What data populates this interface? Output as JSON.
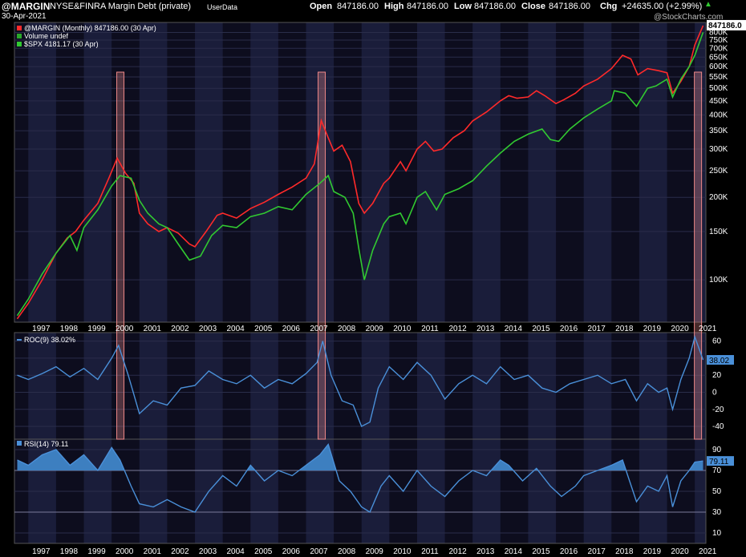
{
  "header": {
    "symbol": "@MARGIN",
    "description": "NYSE&FINRA Margin Debt (private)",
    "source": "UserData",
    "date": "30-Apr-2021",
    "open_label": "Open",
    "open": "847186.00",
    "high_label": "High",
    "high": "847186.00",
    "low_label": "Low",
    "low": "847186.00",
    "close_label": "Close",
    "close": "847186.00",
    "chg_label": "Chg",
    "chg": "+24635.00 (+2.99%)",
    "watermark": "@StockCharts.com"
  },
  "chart_data": [
    {
      "type": "line",
      "panel": "price",
      "scale": "log",
      "legend": [
        {
          "label": "@MARGIN (Monthly) 847186.00 (30 Apr)",
          "color": "#ff2a2a"
        },
        {
          "label": "Volume undef",
          "color": "#2aa82a"
        },
        {
          "label": "$SPX 4181.17 (30 Apr)",
          "color": "#31c931"
        }
      ],
      "last_value_label": "847186.0",
      "y_ticks": [
        "100K",
        "150K",
        "200K",
        "250K",
        "300K",
        "350K",
        "400K",
        "450K",
        "500K",
        "550K",
        "600K",
        "650K",
        "700K",
        "750K",
        "800K"
      ],
      "y_tick_values": [
        100000,
        150000,
        200000,
        250000,
        300000,
        350000,
        400000,
        450000,
        500000,
        550000,
        600000,
        650000,
        700000,
        750000,
        800000
      ],
      "ylim": [
        70000,
        870000
      ],
      "x_ticks": [
        "1997",
        "1998",
        "1999",
        "2000",
        "2001",
        "2002",
        "2003",
        "2004",
        "2005",
        "2006",
        "2007",
        "2008",
        "2009",
        "2010",
        "2011",
        "2012",
        "2013",
        "2014",
        "2015",
        "2016",
        "2017",
        "2018",
        "2019",
        "2020",
        "2021"
      ],
      "xlim": [
        1996.5,
        2021.4
      ],
      "series": [
        {
          "name": "@MARGIN",
          "color": "#ff2a2a",
          "x": [
            1996.6,
            1997.0,
            1997.5,
            1998.0,
            1998.4,
            1998.7,
            1999.0,
            1999.5,
            1999.9,
            2000.2,
            2000.5,
            2000.8,
            2001.0,
            2001.3,
            2001.7,
            2002.0,
            2002.4,
            2002.8,
            2003.0,
            2003.4,
            2003.8,
            2004.0,
            2004.5,
            2005.0,
            2005.5,
            2006.0,
            2006.5,
            2007.0,
            2007.3,
            2007.55,
            2007.8,
            2008.0,
            2008.3,
            2008.6,
            2008.9,
            2009.1,
            2009.4,
            2009.8,
            2010.0,
            2010.4,
            2010.6,
            2011.0,
            2011.3,
            2011.6,
            2011.9,
            2012.3,
            2012.7,
            2013.0,
            2013.5,
            2014.0,
            2014.3,
            2014.6,
            2015.0,
            2015.3,
            2015.6,
            2016.0,
            2016.3,
            2016.7,
            2017.0,
            2017.5,
            2018.0,
            2018.4,
            2018.7,
            2018.95,
            2019.3,
            2019.7,
            2020.0,
            2020.2,
            2020.5,
            2020.8,
            2021.0,
            2021.3
          ],
          "y": [
            72000,
            82000,
            100000,
            125000,
            142000,
            150000,
            165000,
            190000,
            235000,
            278000,
            245000,
            225000,
            175000,
            160000,
            150000,
            155000,
            148000,
            135000,
            132000,
            150000,
            172000,
            175000,
            168000,
            182000,
            192000,
            205000,
            218000,
            235000,
            265000,
            381000,
            330000,
            295000,
            310000,
            270000,
            190000,
            175000,
            190000,
            225000,
            235000,
            270000,
            250000,
            300000,
            320000,
            295000,
            300000,
            330000,
            350000,
            380000,
            410000,
            450000,
            470000,
            460000,
            465000,
            490000,
            470000,
            440000,
            455000,
            480000,
            510000,
            540000,
            590000,
            660000,
            640000,
            560000,
            590000,
            580000,
            570000,
            480000,
            530000,
            600000,
            720000,
            847186
          ]
        },
        {
          "name": "$SPX",
          "color": "#31c931",
          "x": [
            1996.6,
            1997.0,
            1997.5,
            1998.0,
            1998.5,
            1998.75,
            1999.0,
            1999.5,
            2000.0,
            2000.3,
            2000.7,
            2001.0,
            2001.3,
            2001.7,
            2002.0,
            2002.4,
            2002.8,
            2003.2,
            2003.6,
            2004.0,
            2004.5,
            2005.0,
            2005.5,
            2006.0,
            2006.5,
            2007.0,
            2007.5,
            2007.8,
            2008.0,
            2008.4,
            2008.7,
            2008.9,
            2009.1,
            2009.4,
            2009.8,
            2010.0,
            2010.4,
            2010.6,
            2011.0,
            2011.3,
            2011.7,
            2012.0,
            2012.5,
            2013.0,
            2013.5,
            2014.0,
            2014.5,
            2015.0,
            2015.5,
            2015.8,
            2016.1,
            2016.5,
            2017.0,
            2017.5,
            2018.0,
            2018.1,
            2018.5,
            2018.9,
            2019.3,
            2019.6,
            2020.0,
            2020.2,
            2020.5,
            2020.8,
            2021.0,
            2021.3
          ],
          "y": [
            74000,
            85000,
            105000,
            125000,
            145000,
            128000,
            155000,
            180000,
            220000,
            240000,
            235000,
            195000,
            175000,
            160000,
            155000,
            135000,
            118000,
            122000,
            145000,
            158000,
            155000,
            170000,
            175000,
            185000,
            180000,
            205000,
            225000,
            240000,
            210000,
            200000,
            175000,
            130000,
            100000,
            128000,
            160000,
            170000,
            175000,
            160000,
            200000,
            210000,
            180000,
            205000,
            215000,
            230000,
            260000,
            290000,
            320000,
            340000,
            355000,
            325000,
            320000,
            355000,
            390000,
            420000,
            450000,
            490000,
            480000,
            430000,
            500000,
            510000,
            540000,
            465000,
            540000,
            600000,
            660000,
            800000
          ]
        }
      ],
      "highlights": [
        "2000",
        "2007",
        "2021"
      ]
    },
    {
      "type": "line",
      "panel": "indicator",
      "name": "ROC(9) 38.02%",
      "value_label": "38.02",
      "color": "#4a90d9",
      "y_ticks": [
        "60",
        "40",
        "20",
        "0",
        "-20",
        "-40"
      ],
      "y_tick_values": [
        60,
        40,
        20,
        0,
        -20,
        -40
      ],
      "ylim": [
        -55,
        70
      ],
      "series": [
        {
          "name": "ROC(9)",
          "x": [
            1996.6,
            1997.0,
            1997.5,
            1998.0,
            1998.5,
            1999.0,
            1999.5,
            2000.0,
            2000.25,
            2000.6,
            2001.0,
            2001.5,
            2002.0,
            2002.5,
            2003.0,
            2003.5,
            2004.0,
            2004.5,
            2005.0,
            2005.5,
            2006.0,
            2006.5,
            2007.0,
            2007.4,
            2007.6,
            2007.9,
            2008.3,
            2008.7,
            2009.0,
            2009.3,
            2009.6,
            2010.0,
            2010.5,
            2011.0,
            2011.5,
            2012.0,
            2012.5,
            2013.0,
            2013.5,
            2014.0,
            2014.5,
            2015.0,
            2015.5,
            2016.0,
            2016.5,
            2017.0,
            2017.5,
            2018.0,
            2018.5,
            2018.9,
            2019.3,
            2019.7,
            2020.0,
            2020.2,
            2020.5,
            2020.8,
            2021.0,
            2021.3
          ],
          "y": [
            20,
            15,
            22,
            30,
            18,
            28,
            15,
            40,
            55,
            20,
            -25,
            -10,
            -15,
            5,
            8,
            25,
            15,
            10,
            20,
            5,
            15,
            10,
            22,
            35,
            60,
            20,
            -10,
            -15,
            -40,
            -35,
            5,
            30,
            15,
            35,
            20,
            -8,
            10,
            20,
            10,
            30,
            15,
            20,
            5,
            0,
            10,
            15,
            20,
            10,
            15,
            -10,
            10,
            0,
            5,
            -20,
            15,
            40,
            65,
            38.02
          ]
        }
      ],
      "highlights": [
        "2000",
        "2007",
        "2021"
      ]
    },
    {
      "type": "area",
      "panel": "indicator",
      "name": "RSI(14) 79.11",
      "value_label": "79.11",
      "color": "#4a90d9",
      "y_ticks": [
        "90",
        "70",
        "50",
        "30",
        "10"
      ],
      "y_tick_values": [
        90,
        70,
        50,
        30,
        10
      ],
      "reference_lines": [
        70,
        30
      ],
      "ylim": [
        0,
        100
      ],
      "x_ticks": [
        "1997",
        "1998",
        "1999",
        "2000",
        "2001",
        "2002",
        "2003",
        "2004",
        "2005",
        "2006",
        "2007",
        "2008",
        "2009",
        "2010",
        "2011",
        "2012",
        "2013",
        "2014",
        "2015",
        "2016",
        "2017",
        "2018",
        "2019",
        "2020",
        "2021"
      ],
      "series": [
        {
          "name": "RSI(14)",
          "x": [
            1996.6,
            1997.0,
            1997.5,
            1998.0,
            1998.5,
            1999.0,
            1999.5,
            2000.0,
            2000.3,
            2000.7,
            2001.0,
            2001.5,
            2002.0,
            2002.5,
            2003.0,
            2003.5,
            2004.0,
            2004.5,
            2005.0,
            2005.5,
            2006.0,
            2006.5,
            2007.0,
            2007.5,
            2007.8,
            2008.2,
            2008.6,
            2009.0,
            2009.3,
            2009.7,
            2010.0,
            2010.5,
            2011.0,
            2011.5,
            2012.0,
            2012.5,
            2013.0,
            2013.5,
            2014.0,
            2014.3,
            2014.8,
            2015.3,
            2015.8,
            2016.2,
            2016.7,
            2017.0,
            2017.5,
            2018.0,
            2018.4,
            2018.9,
            2019.3,
            2019.7,
            2020.0,
            2020.2,
            2020.5,
            2020.8,
            2021.0,
            2021.3
          ],
          "y": [
            80,
            75,
            85,
            90,
            75,
            85,
            70,
            92,
            80,
            55,
            38,
            35,
            42,
            35,
            30,
            50,
            65,
            55,
            75,
            60,
            70,
            65,
            75,
            85,
            95,
            60,
            50,
            35,
            30,
            55,
            65,
            50,
            70,
            55,
            45,
            60,
            70,
            65,
            80,
            75,
            60,
            72,
            55,
            45,
            55,
            65,
            70,
            75,
            80,
            40,
            55,
            50,
            65,
            35,
            60,
            70,
            78,
            79.11
          ]
        }
      ],
      "highlights": [
        "2000",
        "2007",
        "2021"
      ]
    }
  ]
}
